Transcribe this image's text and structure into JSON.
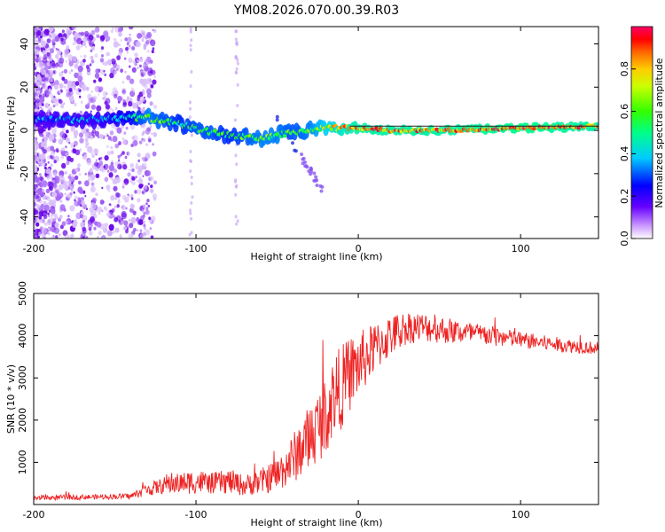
{
  "page": {
    "title": "YM08.2026.070.00.39.R03"
  },
  "colors": {
    "snr_line": "#ee2222",
    "spectrogram_points": "#7a2ae0",
    "frame": "#000000"
  },
  "chart_data": [
    {
      "type": "heatmap",
      "title": "YM08.2026.070.00.39.R03",
      "xlabel": "Height of straight line (km)",
      "ylabel": "Frequency (Hz)",
      "xlim": [
        -200,
        148
      ],
      "ylim": [
        -50,
        48
      ],
      "x_ticks": [
        -200,
        -100,
        0,
        100
      ],
      "x_tick_labels": [
        "-200",
        "-100",
        "0",
        "100"
      ],
      "y_ticks": [
        -40,
        -20,
        0,
        20,
        40
      ],
      "y_tick_labels": [
        "-40",
        "-20",
        "0",
        "20",
        "40"
      ],
      "colorbar": {
        "label": "Normalized spectral amplitude",
        "range": [
          0,
          1
        ],
        "ticks": [
          0,
          0.2,
          0.4,
          0.6,
          0.8
        ],
        "tick_labels": [
          "0.0",
          "0.2",
          "0.4",
          "0.6",
          "0.8"
        ],
        "colormap": "rainbow"
      },
      "ridge": {
        "x": [
          -200,
          -180,
          -160,
          -140,
          -130,
          -120,
          -110,
          -100,
          -90,
          -80,
          -70,
          -60,
          -50,
          -40,
          -30,
          -20,
          -10,
          0,
          20,
          50,
          100,
          148
        ],
        "frequency": [
          5,
          5,
          5,
          6,
          6,
          4,
          3,
          1,
          -1,
          -2,
          -3,
          -4,
          -2,
          -1,
          0,
          1,
          1,
          1,
          0,
          0,
          1,
          2
        ],
        "amplitude": [
          0.3,
          0.35,
          0.35,
          0.45,
          0.6,
          0.55,
          0.5,
          0.55,
          0.55,
          0.5,
          0.55,
          0.6,
          0.6,
          0.55,
          0.6,
          0.7,
          0.8,
          0.85,
          0.85,
          0.85,
          0.9,
          0.85
        ]
      }
    },
    {
      "type": "line",
      "xlabel": "Height of straight line (km)",
      "ylabel": "SNR (10 * v/v)",
      "xlim": [
        -200,
        148
      ],
      "ylim": [
        0,
        5000
      ],
      "x_ticks": [
        -200,
        -100,
        0,
        100
      ],
      "x_tick_labels": [
        "-200",
        "-100",
        "0",
        "100"
      ],
      "y_ticks": [
        1000,
        2000,
        3000,
        4000,
        5000
      ],
      "y_tick_labels": [
        "1000",
        "2000",
        "3000",
        "4000",
        "5000"
      ],
      "series": [
        {
          "name": "SNR",
          "x": [
            -200,
            -180,
            -160,
            -140,
            -130,
            -120,
            -110,
            -100,
            -90,
            -80,
            -70,
            -60,
            -50,
            -40,
            -30,
            -20,
            -15,
            -10,
            -5,
            0,
            10,
            20,
            30,
            40,
            60,
            80,
            100,
            120,
            148
          ],
          "values": [
            150,
            170,
            180,
            200,
            350,
            450,
            500,
            550,
            500,
            550,
            450,
            550,
            700,
            1100,
            1600,
            2100,
            2600,
            2800,
            3100,
            3300,
            3700,
            4000,
            4200,
            4200,
            4100,
            4000,
            3900,
            3800,
            3700
          ],
          "noise_spread": [
            60,
            60,
            60,
            70,
            150,
            200,
            250,
            300,
            250,
            300,
            250,
            300,
            400,
            600,
            800,
            900,
            1000,
            1000,
            900,
            800,
            600,
            500,
            400,
            350,
            300,
            250,
            200,
            180,
            150
          ]
        }
      ]
    }
  ]
}
